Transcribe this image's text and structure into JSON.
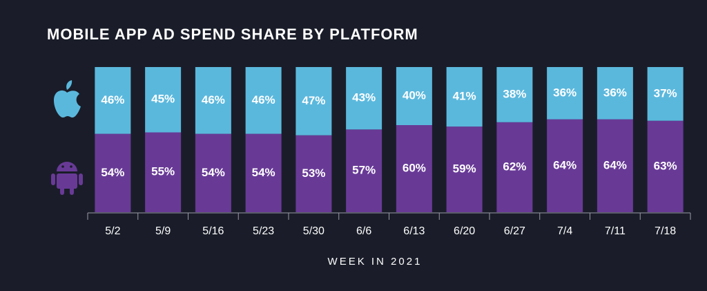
{
  "chart_data": {
    "type": "stacked-bar",
    "title": "MOBILE APP AD SPEND SHARE BY PLATFORM",
    "x_label": "WEEK IN 2021",
    "categories": [
      "5/2",
      "5/9",
      "5/16",
      "5/23",
      "5/30",
      "6/6",
      "6/13",
      "6/20",
      "6/27",
      "7/4",
      "7/11",
      "7/18"
    ],
    "series": [
      {
        "color": "#683a96",
        "values": [
          54,
          55,
          54,
          54,
          53,
          57,
          60,
          59,
          62,
          64,
          64,
          63
        ],
        "value_labels": [
          "54%",
          "55%",
          "54%",
          "54%",
          "53%",
          "57%",
          "60%",
          "59%",
          "62%",
          "64%",
          "64%",
          "63%"
        ]
      },
      {
        "color": "#5bb8dd",
        "values": [
          46,
          45,
          46,
          46,
          47,
          43,
          40,
          41,
          38,
          36,
          36,
          37
        ],
        "value_labels": [
          "46%",
          "45%",
          "46%",
          "46%",
          "47%",
          "43%",
          "40%",
          "41%",
          "38%",
          "36%",
          "36%",
          "37%"
        ]
      }
    ],
    "ylim": [
      0,
      100
    ]
  }
}
